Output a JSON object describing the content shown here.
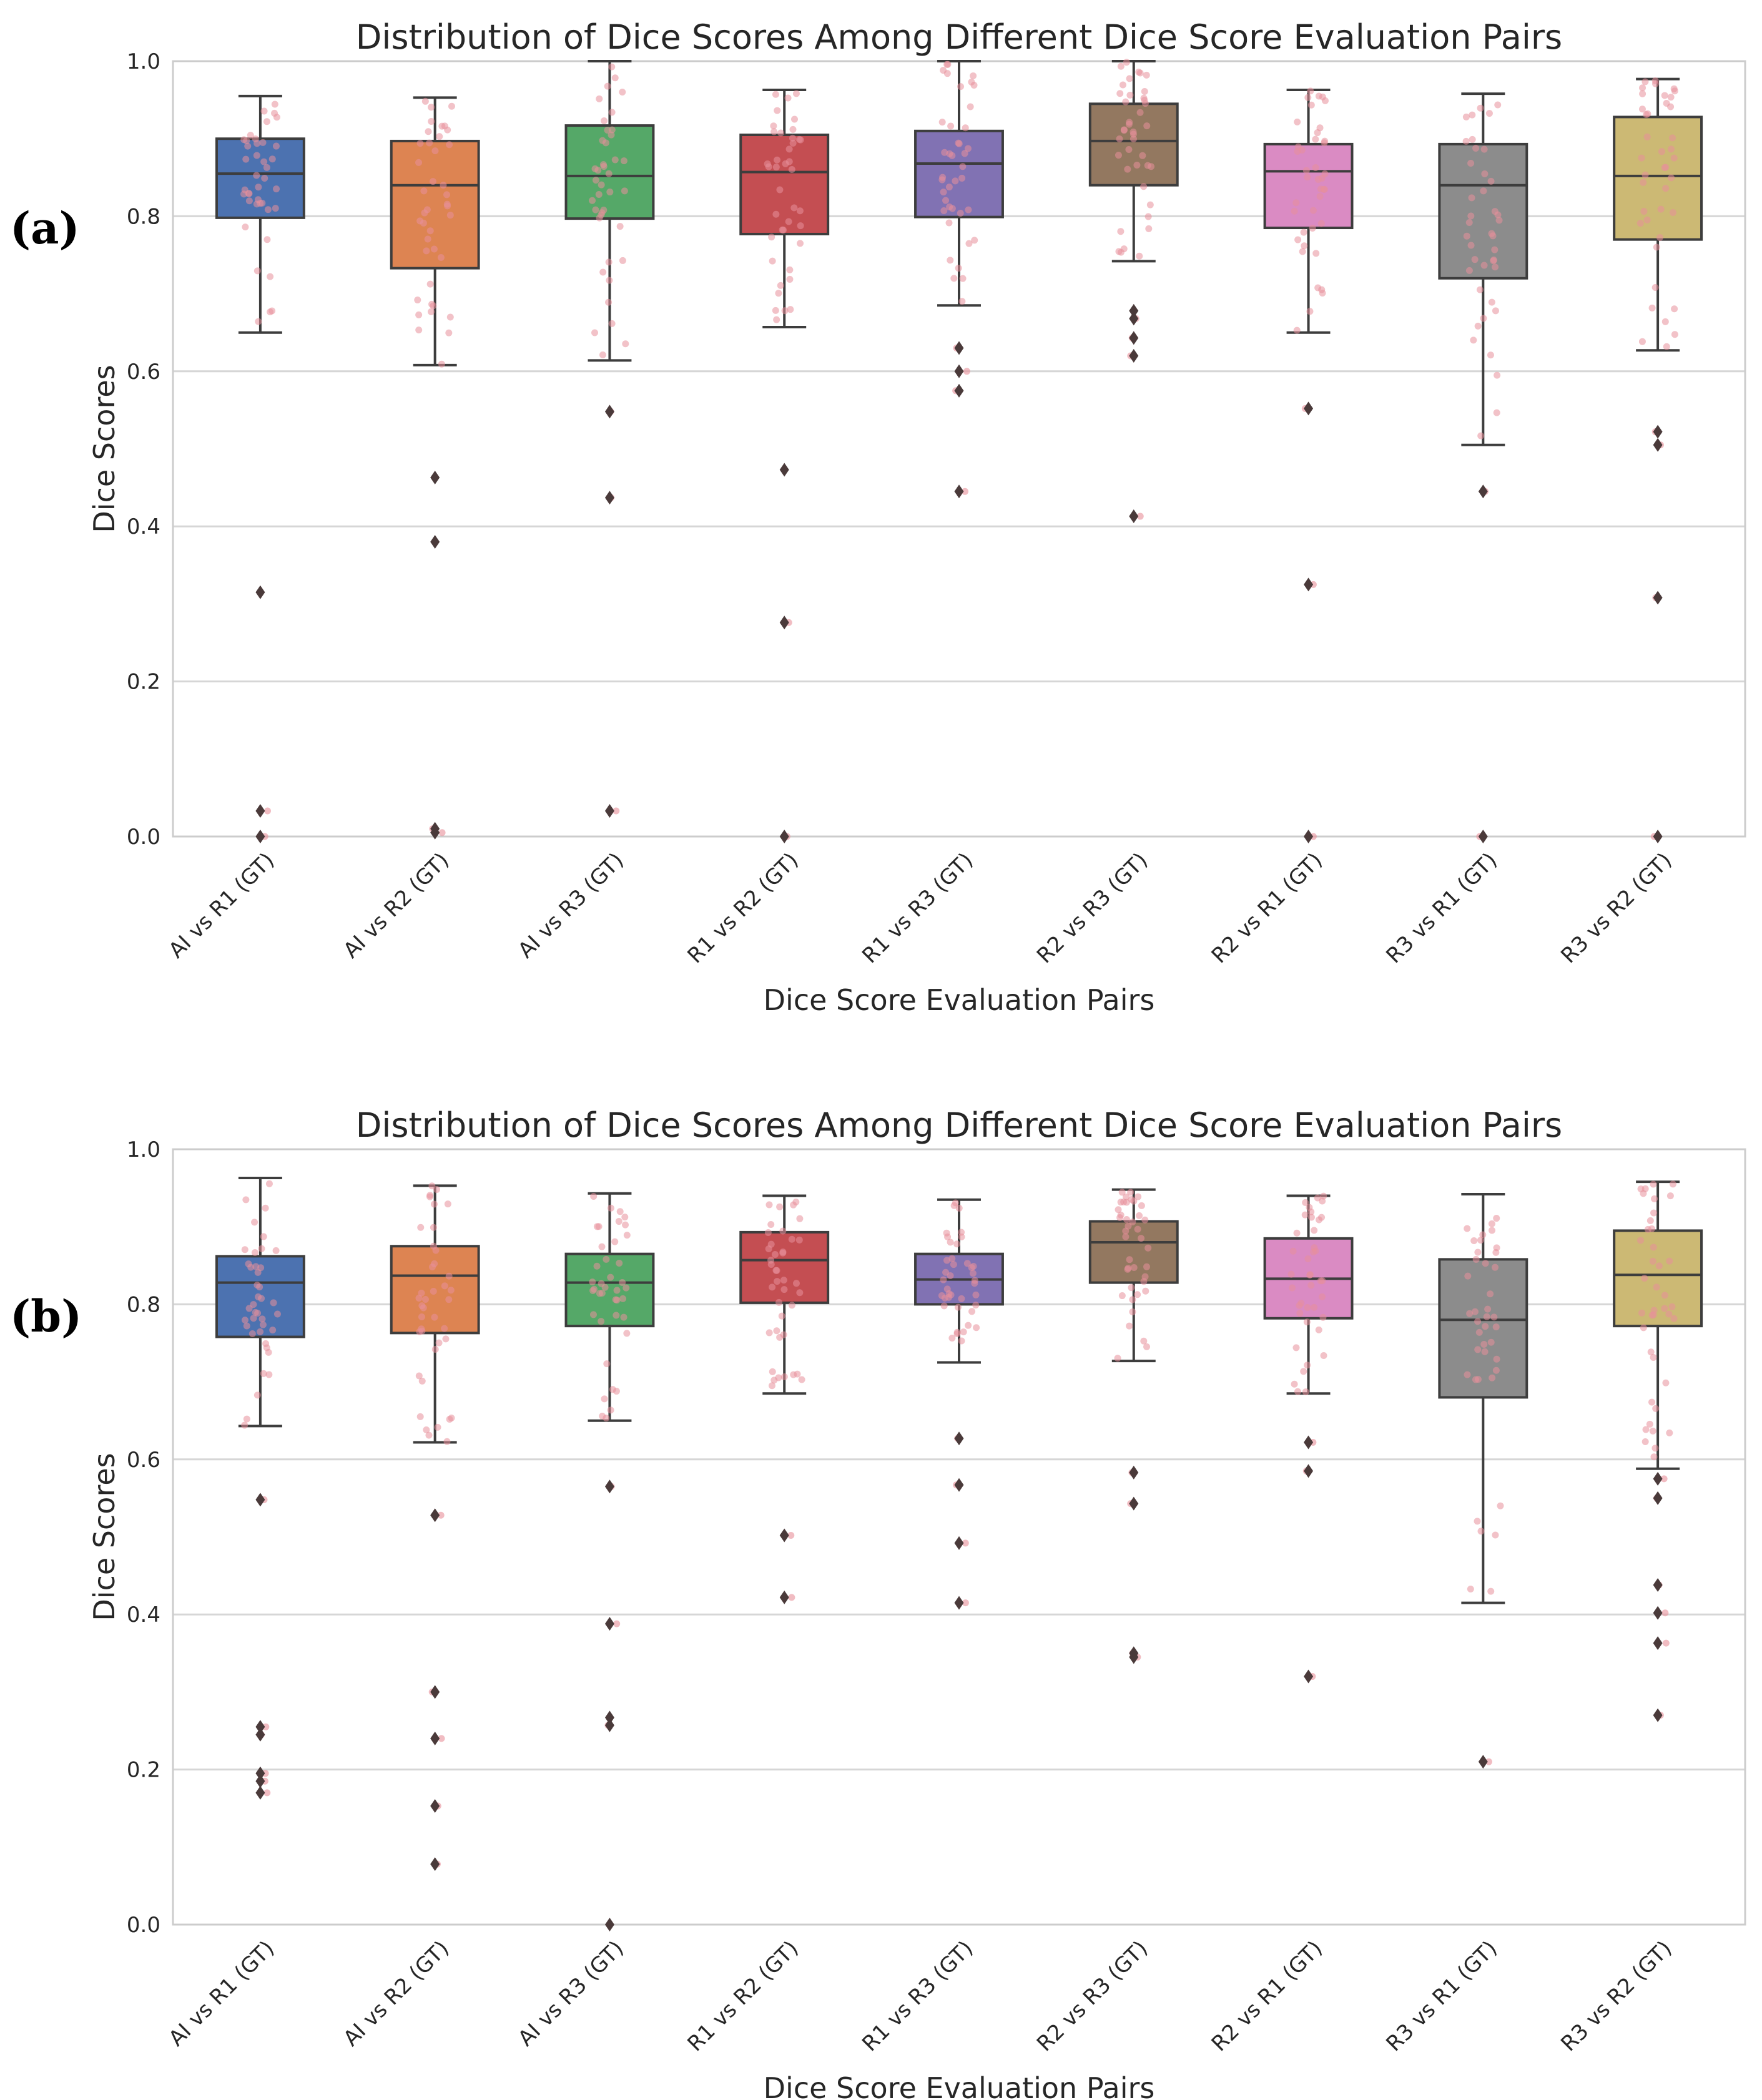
{
  "chart_data": [
    {
      "type": "box",
      "panel_label": "(a)",
      "title": "Distribution of Dice Scores Among Different Dice Score Evaluation Pairs",
      "xlabel": "Dice Score Evaluation Pairs",
      "ylabel": "Dice Scores",
      "ylim": [
        0.0,
        1.0
      ],
      "yticks": [
        "0.0",
        "0.2",
        "0.4",
        "0.6",
        "0.8",
        "1.0"
      ],
      "grid": true,
      "categories": [
        "AI vs R1 (GT)",
        "AI vs R2 (GT)",
        "AI vs R3 (GT)",
        "R1 vs R2 (GT)",
        "R1 vs R3 (GT)",
        "R2 vs R3 (GT)",
        "R2 vs R1 (GT)",
        "R3 vs R1 (GT)",
        "R3 vs R2 (GT)"
      ],
      "colors": [
        "#4c72b0",
        "#dd8452",
        "#55a868",
        "#c44e52",
        "#8172b3",
        "#937860",
        "#da8bc3",
        "#8c8c8c",
        "#ccb974"
      ],
      "boxes": [
        {
          "q1": 0.798,
          "median": 0.855,
          "q3": 0.9,
          "whislo": 0.65,
          "whishi": 0.955,
          "outliers": [
            0.315,
            0.033,
            0.0
          ]
        },
        {
          "q1": 0.733,
          "median": 0.84,
          "q3": 0.897,
          "whislo": 0.608,
          "whishi": 0.953,
          "outliers": [
            0.463,
            0.38,
            0.01,
            0.005
          ]
        },
        {
          "q1": 0.797,
          "median": 0.852,
          "q3": 0.917,
          "whislo": 0.614,
          "whishi": 1.0,
          "outliers": [
            0.548,
            0.437,
            0.033
          ]
        },
        {
          "q1": 0.777,
          "median": 0.857,
          "q3": 0.905,
          "whislo": 0.657,
          "whishi": 0.963,
          "outliers": [
            0.473,
            0.276,
            0.0
          ]
        },
        {
          "q1": 0.799,
          "median": 0.868,
          "q3": 0.91,
          "whislo": 0.685,
          "whishi": 1.0,
          "outliers": [
            0.63,
            0.6,
            0.575,
            0.445
          ]
        },
        {
          "q1": 0.84,
          "median": 0.897,
          "q3": 0.945,
          "whislo": 0.742,
          "whishi": 1.0,
          "outliers": [
            0.678,
            0.668,
            0.643,
            0.62,
            0.413
          ]
        },
        {
          "q1": 0.785,
          "median": 0.858,
          "q3": 0.893,
          "whislo": 0.65,
          "whishi": 0.963,
          "outliers": [
            0.552,
            0.325,
            0.0
          ]
        },
        {
          "q1": 0.72,
          "median": 0.84,
          "q3": 0.893,
          "whislo": 0.505,
          "whishi": 0.958,
          "outliers": [
            0.445,
            0.0
          ]
        },
        {
          "q1": 0.77,
          "median": 0.852,
          "q3": 0.928,
          "whislo": 0.627,
          "whishi": 0.977,
          "outliers": [
            0.522,
            0.505,
            0.308,
            0.0
          ]
        }
      ]
    },
    {
      "type": "box",
      "panel_label": "(b)",
      "title": "Distribution of Dice Scores Among Different Dice Score Evaluation Pairs",
      "xlabel": "Dice Score Evaluation Pairs",
      "ylabel": "Dice Scores",
      "ylim": [
        0.0,
        1.0
      ],
      "yticks": [
        "0.0",
        "0.2",
        "0.4",
        "0.6",
        "0.8",
        "1.0"
      ],
      "grid": true,
      "categories": [
        "AI vs R1 (GT)",
        "AI vs R2 (GT)",
        "AI vs R3 (GT)",
        "R1 vs R2 (GT)",
        "R1 vs R3 (GT)",
        "R2 vs R3 (GT)",
        "R2 vs R1 (GT)",
        "R3 vs R1 (GT)",
        "R3 vs R2 (GT)"
      ],
      "colors": [
        "#4c72b0",
        "#dd8452",
        "#55a868",
        "#c44e52",
        "#8172b3",
        "#937860",
        "#da8bc3",
        "#8c8c8c",
        "#ccb974"
      ],
      "boxes": [
        {
          "q1": 0.758,
          "median": 0.828,
          "q3": 0.862,
          "whislo": 0.643,
          "whishi": 0.963,
          "outliers": [
            0.548,
            0.255,
            0.245,
            0.195,
            0.185,
            0.17
          ]
        },
        {
          "q1": 0.763,
          "median": 0.837,
          "q3": 0.875,
          "whislo": 0.622,
          "whishi": 0.953,
          "outliers": [
            0.528,
            0.3,
            0.24,
            0.153,
            0.078
          ]
        },
        {
          "q1": 0.772,
          "median": 0.828,
          "q3": 0.865,
          "whislo": 0.65,
          "whishi": 0.943,
          "outliers": [
            0.565,
            0.388,
            0.267,
            0.257,
            0.0
          ]
        },
        {
          "q1": 0.802,
          "median": 0.857,
          "q3": 0.893,
          "whislo": 0.685,
          "whishi": 0.94,
          "outliers": [
            0.502,
            0.422
          ]
        },
        {
          "q1": 0.8,
          "median": 0.832,
          "q3": 0.865,
          "whislo": 0.725,
          "whishi": 0.935,
          "outliers": [
            0.627,
            0.567,
            0.492,
            0.415
          ]
        },
        {
          "q1": 0.828,
          "median": 0.88,
          "q3": 0.907,
          "whislo": 0.727,
          "whishi": 0.948,
          "outliers": [
            0.583,
            0.543,
            0.35,
            0.345
          ]
        },
        {
          "q1": 0.782,
          "median": 0.833,
          "q3": 0.885,
          "whislo": 0.685,
          "whishi": 0.94,
          "outliers": [
            0.622,
            0.585,
            0.32
          ]
        },
        {
          "q1": 0.68,
          "median": 0.78,
          "q3": 0.858,
          "whislo": 0.415,
          "whishi": 0.942,
          "outliers": [
            0.21
          ]
        },
        {
          "q1": 0.772,
          "median": 0.838,
          "q3": 0.895,
          "whislo": 0.588,
          "whishi": 0.958,
          "outliers": [
            0.575,
            0.55,
            0.438,
            0.402,
            0.363,
            0.27
          ]
        }
      ]
    }
  ],
  "colors": {
    "line": "#3d3d3d",
    "outlier": "#4a3a3a",
    "jitter": "#e8909a",
    "grid": "#d6d6d6",
    "frame": "#cccccc"
  }
}
